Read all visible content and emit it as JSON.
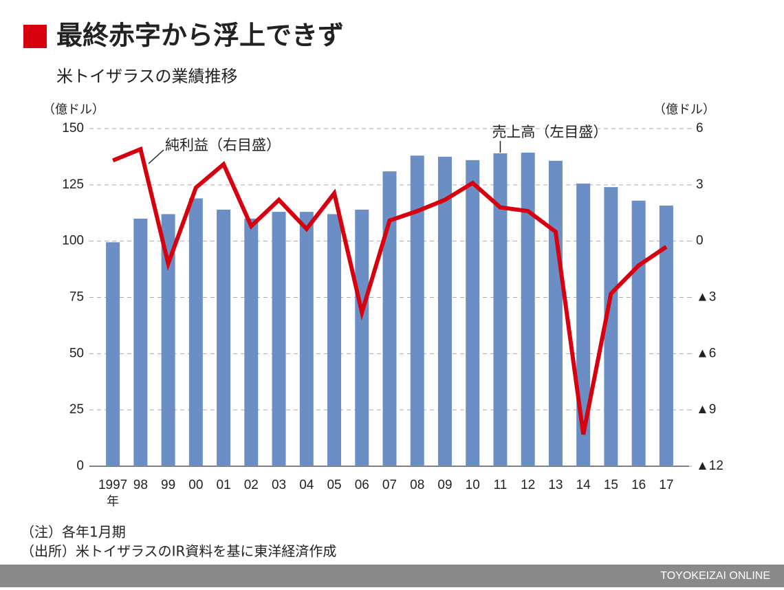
{
  "chart_data": {
    "type": "combo",
    "title": "最終赤字から浮上できず",
    "subtitle": "米トイザラスの業績推移",
    "y_unit": "（億ドル）",
    "y2_unit": "（億ドル）",
    "categories": [
      "1997",
      "98",
      "99",
      "00",
      "01",
      "02",
      "03",
      "04",
      "05",
      "06",
      "07",
      "08",
      "09",
      "10",
      "11",
      "12",
      "13",
      "14",
      "15",
      "16",
      "17"
    ],
    "year_unit": "年",
    "series": [
      {
        "type": "bar",
        "label": "売上高（左目盛）",
        "color": "#6b8fc4",
        "values": [
          99.5,
          110,
          112,
          119,
          114,
          110,
          113,
          113,
          112,
          114,
          131,
          138,
          137.5,
          136,
          139,
          139.3,
          135.7,
          125.6,
          124,
          118,
          115.8
        ]
      },
      {
        "type": "line",
        "axis": "y2",
        "label": "純利益（右目盛）",
        "color": "#d7000f",
        "values": [
          4.3,
          4.9,
          -1.2,
          2.85,
          4.1,
          0.8,
          2.2,
          0.65,
          2.55,
          -3.8,
          1.1,
          1.6,
          2.2,
          3.1,
          1.8,
          1.6,
          0.5,
          -10.3,
          -2.8,
          -1.3,
          -0.3
        ]
      }
    ],
    "ylim": [
      0,
      150
    ],
    "yticks": [
      0,
      25,
      50,
      75,
      100,
      125,
      150
    ],
    "y2lim": [
      -12,
      6
    ],
    "y2ticks": [
      {
        "value": -12,
        "label": "▲12"
      },
      {
        "value": -9,
        "label": "▲9"
      },
      {
        "value": -6,
        "label": "▲6"
      },
      {
        "value": -3,
        "label": "▲3"
      },
      0,
      3,
      6
    ],
    "grid": true,
    "notes": [
      "（注）各年1月期",
      "（出所）米トイザラスのIR資料を基に東洋経済作成"
    ],
    "footer": "TOYOKEIZAI ONLINE"
  }
}
